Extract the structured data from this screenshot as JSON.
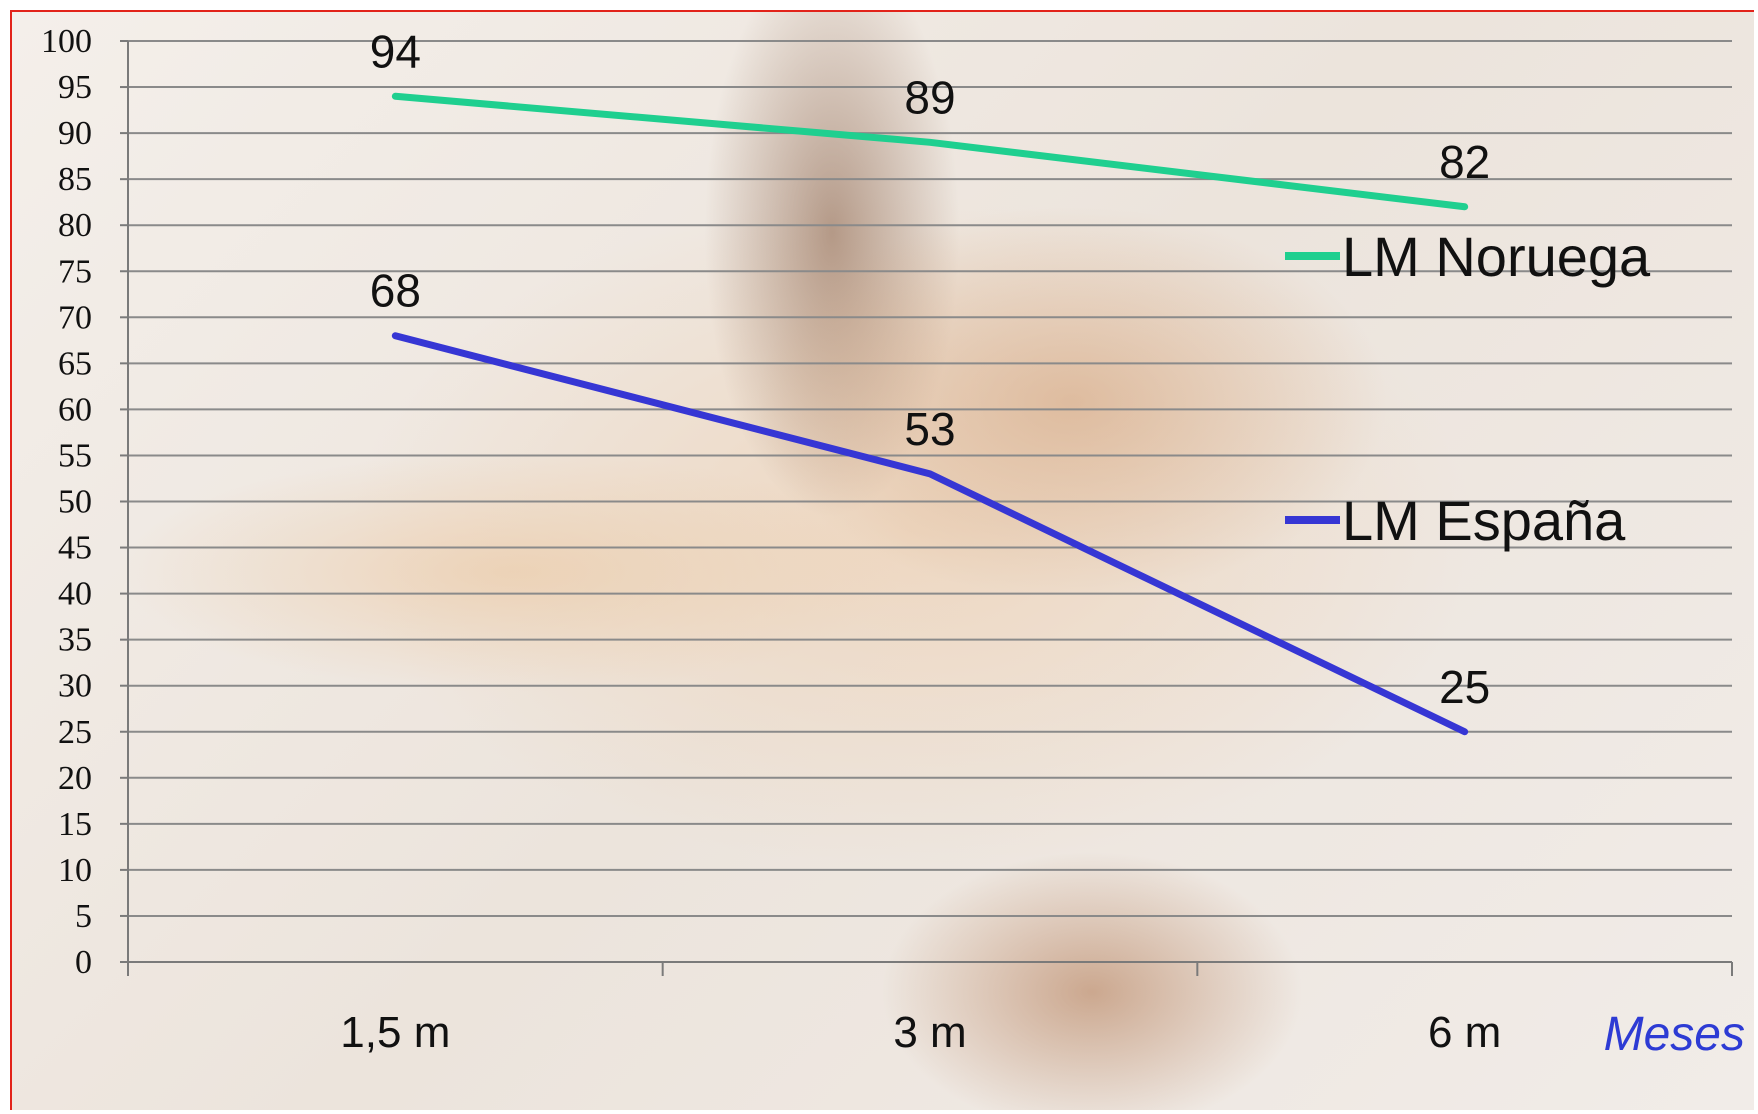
{
  "chart_data": {
    "type": "line",
    "categories": [
      "1,5 m",
      "3 m",
      "6 m"
    ],
    "series": [
      {
        "name": "LM Noruega",
        "values": [
          94,
          89,
          82
        ],
        "color": "#1fcf8f"
      },
      {
        "name": "LM España",
        "values": [
          68,
          53,
          25
        ],
        "color": "#3636d4"
      }
    ],
    "y_ticks": [
      "0",
      "5",
      "10",
      "15",
      "20",
      "25",
      "30",
      "35",
      "40",
      "45",
      "50",
      "55",
      "60",
      "65",
      "70",
      "75",
      "80",
      "85",
      "90",
      "95",
      "100"
    ],
    "ylim": [
      0,
      100
    ],
    "xlabel": "Meses",
    "grid": true,
    "legend_position": "right"
  }
}
